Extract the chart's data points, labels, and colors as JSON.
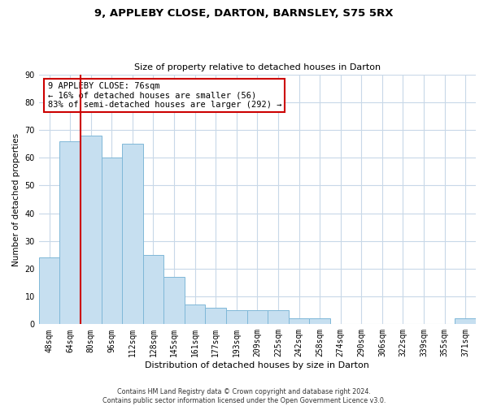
{
  "title": "9, APPLEBY CLOSE, DARTON, BARNSLEY, S75 5RX",
  "subtitle": "Size of property relative to detached houses in Darton",
  "xlabel": "Distribution of detached houses by size in Darton",
  "ylabel": "Number of detached properties",
  "footer_line1": "Contains HM Land Registry data © Crown copyright and database right 2024.",
  "footer_line2": "Contains public sector information licensed under the Open Government Licence v3.0.",
  "bar_labels": [
    "48sqm",
    "64sqm",
    "80sqm",
    "96sqm",
    "112sqm",
    "128sqm",
    "145sqm",
    "161sqm",
    "177sqm",
    "193sqm",
    "209sqm",
    "225sqm",
    "242sqm",
    "258sqm",
    "274sqm",
    "290sqm",
    "306sqm",
    "322sqm",
    "339sqm",
    "355sqm",
    "371sqm"
  ],
  "bar_values": [
    24,
    66,
    68,
    60,
    65,
    25,
    17,
    7,
    6,
    5,
    5,
    5,
    2,
    2,
    0,
    0,
    0,
    0,
    0,
    0,
    2
  ],
  "bar_color": "#c6dff0",
  "bar_edge_color": "#7fb8d8",
  "vline_x": 1.5,
  "annotation_text": "9 APPLEBY CLOSE: 76sqm\n← 16% of detached houses are smaller (56)\n83% of semi-detached houses are larger (292) →",
  "annotation_box_color": "#ffffff",
  "annotation_box_edge": "#cc0000",
  "vline_color": "#cc0000",
  "ylim": [
    0,
    90
  ],
  "yticks": [
    0,
    10,
    20,
    30,
    40,
    50,
    60,
    70,
    80,
    90
  ],
  "background_color": "#ffffff",
  "grid_color": "#c8d8e8",
  "title_fontsize": 9.5,
  "subtitle_fontsize": 8.0,
  "xlabel_fontsize": 8.0,
  "ylabel_fontsize": 7.5,
  "tick_fontsize": 7.0,
  "annotation_fontsize": 7.5,
  "footer_fontsize": 5.8
}
